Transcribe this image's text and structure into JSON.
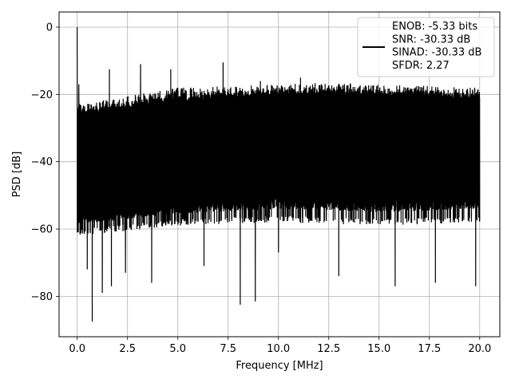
{
  "chart_data": {
    "type": "line",
    "xlabel": "Frequency [MHz]",
    "ylabel": "PSD [dB]",
    "xlim": [
      -0.9,
      21.0
    ],
    "ylim": [
      -92,
      4.5
    ],
    "x_ticks": [
      0.0,
      2.5,
      5.0,
      7.5,
      10.0,
      12.5,
      15.0,
      17.5,
      20.0
    ],
    "x_tick_labels": [
      "0.0",
      "2.5",
      "5.0",
      "7.5",
      "10.0",
      "12.5",
      "15.0",
      "17.5",
      "20.0"
    ],
    "y_ticks": [
      0,
      -20,
      -40,
      -60,
      -80
    ],
    "y_tick_labels": [
      "0",
      "−20",
      "−40",
      "−60",
      "−80"
    ],
    "grid": true,
    "legend_placement": "upper-right",
    "legend_lines": [
      "ENOB: -5.33 bits",
      "SNR: -30.33 dB",
      "SINAD: -30.33 dB",
      "SFDR: 2.27"
    ],
    "line_color": "#000000",
    "series": [
      {
        "description_of_shape": "dense noise floor",
        "x_start": 0.0,
        "x_end": 20.0,
        "upper_envelope_db": [
          [
            0.0,
            -23
          ],
          [
            2.0,
            -21
          ],
          [
            5.0,
            -18
          ],
          [
            10.0,
            -17
          ],
          [
            12.5,
            -16.5
          ],
          [
            15.0,
            -17
          ],
          [
            20.0,
            -18
          ]
        ],
        "lower_envelope_db": [
          [
            0.0,
            -62
          ],
          [
            5.0,
            -59
          ],
          [
            10.0,
            -58
          ],
          [
            15.0,
            -59
          ],
          [
            20.0,
            -58
          ]
        ],
        "core_top_db": [
          [
            0.0,
            -26
          ],
          [
            5.0,
            -22
          ],
          [
            10.0,
            -20
          ],
          [
            15.0,
            -20
          ],
          [
            20.0,
            -21
          ]
        ],
        "core_bottom_db": [
          [
            0.0,
            -55
          ],
          [
            5.0,
            -52
          ],
          [
            10.0,
            -50
          ],
          [
            15.0,
            -51
          ],
          [
            20.0,
            -50
          ]
        ],
        "peaks": [
          [
            0.0,
            0.0
          ],
          [
            0.08,
            -17
          ],
          [
            1.6,
            -12.5
          ],
          [
            3.15,
            -11
          ],
          [
            4.65,
            -12.5
          ],
          [
            7.25,
            -10.5
          ],
          [
            9.1,
            -16
          ],
          [
            11.1,
            -15
          ]
        ],
        "dips": [
          [
            0.75,
            -87.5
          ],
          [
            0.5,
            -72
          ],
          [
            1.25,
            -79
          ],
          [
            1.7,
            -77
          ],
          [
            2.4,
            -73
          ],
          [
            3.7,
            -76
          ],
          [
            6.3,
            -71
          ],
          [
            8.1,
            -82.5
          ],
          [
            8.85,
            -81.5
          ],
          [
            10.0,
            -67
          ],
          [
            13.0,
            -74
          ],
          [
            15.8,
            -77
          ],
          [
            17.8,
            -76
          ],
          [
            19.8,
            -77
          ]
        ]
      }
    ]
  }
}
